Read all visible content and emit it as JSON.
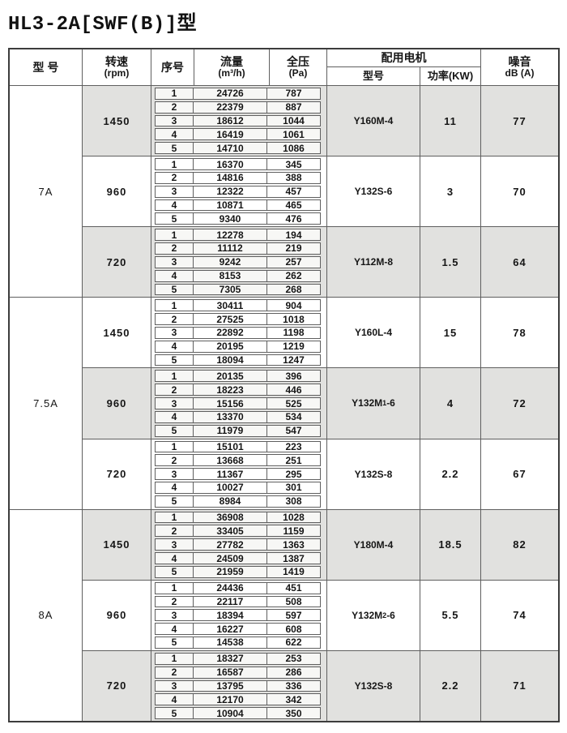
{
  "title": "HL3-2A[SWF(B)]型",
  "colors": {
    "band_gray": "#e1e1df",
    "band_white": "#ffffff",
    "border_dark": "#3c3c3c",
    "border_inner": "#5f5f5f"
  },
  "table": {
    "headers": {
      "model": "型 号",
      "speed_line1": "转速",
      "speed_line2": "(rpm)",
      "serial": "序号",
      "flow_line1": "流量",
      "flow_line2": "(m³/h)",
      "pressure_line1": "全压",
      "pressure_line2": "(Pa)",
      "motor_group": "配用电机",
      "motor_model": "型号",
      "motor_power": "功率(KW)",
      "noise_line1": "噪音",
      "noise_line2": "dB (A)"
    },
    "models": [
      {
        "name": "7A",
        "blocks": [
          {
            "speed": "1450",
            "shaded": true,
            "rows": [
              [
                "1",
                "24726",
                "787"
              ],
              [
                "2",
                "22379",
                "887"
              ],
              [
                "3",
                "18612",
                "1044"
              ],
              [
                "4",
                "16419",
                "1061"
              ],
              [
                "5",
                "14710",
                "1086"
              ]
            ],
            "motor": {
              "pre": "Y160M-4",
              "sub": "",
              "post": ""
            },
            "power": "11",
            "noise": "77"
          },
          {
            "speed": "960",
            "shaded": false,
            "rows": [
              [
                "1",
                "16370",
                "345"
              ],
              [
                "2",
                "14816",
                "388"
              ],
              [
                "3",
                "12322",
                "457"
              ],
              [
                "4",
                "10871",
                "465"
              ],
              [
                "5",
                "9340",
                "476"
              ]
            ],
            "motor": {
              "pre": "Y132S-6",
              "sub": "",
              "post": ""
            },
            "power": "3",
            "noise": "70"
          },
          {
            "speed": "720",
            "shaded": true,
            "rows": [
              [
                "1",
                "12278",
                "194"
              ],
              [
                "2",
                "11112",
                "219"
              ],
              [
                "3",
                "9242",
                "257"
              ],
              [
                "4",
                "8153",
                "262"
              ],
              [
                "5",
                "7305",
                "268"
              ]
            ],
            "motor": {
              "pre": "Y112M-8",
              "sub": "",
              "post": ""
            },
            "power": "1.5",
            "noise": "64"
          }
        ]
      },
      {
        "name": "7.5A",
        "blocks": [
          {
            "speed": "1450",
            "shaded": false,
            "rows": [
              [
                "1",
                "30411",
                "904"
              ],
              [
                "2",
                "27525",
                "1018"
              ],
              [
                "3",
                "22892",
                "1198"
              ],
              [
                "4",
                "20195",
                "1219"
              ],
              [
                "5",
                "18094",
                "1247"
              ]
            ],
            "motor": {
              "pre": "Y160L-4",
              "sub": "",
              "post": ""
            },
            "power": "15",
            "noise": "78"
          },
          {
            "speed": "960",
            "shaded": true,
            "rows": [
              [
                "1",
                "20135",
                "396"
              ],
              [
                "2",
                "18223",
                "446"
              ],
              [
                "3",
                "15156",
                "525"
              ],
              [
                "4",
                "13370",
                "534"
              ],
              [
                "5",
                "11979",
                "547"
              ]
            ],
            "motor": {
              "pre": "Y132M",
              "sub": "1",
              "post": "-6"
            },
            "power": "4",
            "noise": "72"
          },
          {
            "speed": "720",
            "shaded": false,
            "rows": [
              [
                "1",
                "15101",
                "223"
              ],
              [
                "2",
                "13668",
                "251"
              ],
              [
                "3",
                "11367",
                "295"
              ],
              [
                "4",
                "10027",
                "301"
              ],
              [
                "5",
                "8984",
                "308"
              ]
            ],
            "motor": {
              "pre": "Y132S-8",
              "sub": "",
              "post": ""
            },
            "power": "2.2",
            "noise": "67"
          }
        ]
      },
      {
        "name": "8A",
        "blocks": [
          {
            "speed": "1450",
            "shaded": true,
            "rows": [
              [
                "1",
                "36908",
                "1028"
              ],
              [
                "2",
                "33405",
                "1159"
              ],
              [
                "3",
                "27782",
                "1363"
              ],
              [
                "4",
                "24509",
                "1387"
              ],
              [
                "5",
                "21959",
                "1419"
              ]
            ],
            "motor": {
              "pre": "Y180M-4",
              "sub": "",
              "post": ""
            },
            "power": "18.5",
            "noise": "82"
          },
          {
            "speed": "960",
            "shaded": false,
            "rows": [
              [
                "1",
                "24436",
                "451"
              ],
              [
                "2",
                "22117",
                "508"
              ],
              [
                "3",
                "18394",
                "597"
              ],
              [
                "4",
                "16227",
                "608"
              ],
              [
                "5",
                "14538",
                "622"
              ]
            ],
            "motor": {
              "pre": "Y132M",
              "sub": "2",
              "post": "-6"
            },
            "power": "5.5",
            "noise": "74"
          },
          {
            "speed": "720",
            "shaded": true,
            "rows": [
              [
                "1",
                "18327",
                "253"
              ],
              [
                "2",
                "16587",
                "286"
              ],
              [
                "3",
                "13795",
                "336"
              ],
              [
                "4",
                "12170",
                "342"
              ],
              [
                "5",
                "10904",
                "350"
              ]
            ],
            "motor": {
              "pre": "Y132S-8",
              "sub": "",
              "post": ""
            },
            "power": "2.2",
            "noise": "71"
          }
        ]
      }
    ]
  }
}
